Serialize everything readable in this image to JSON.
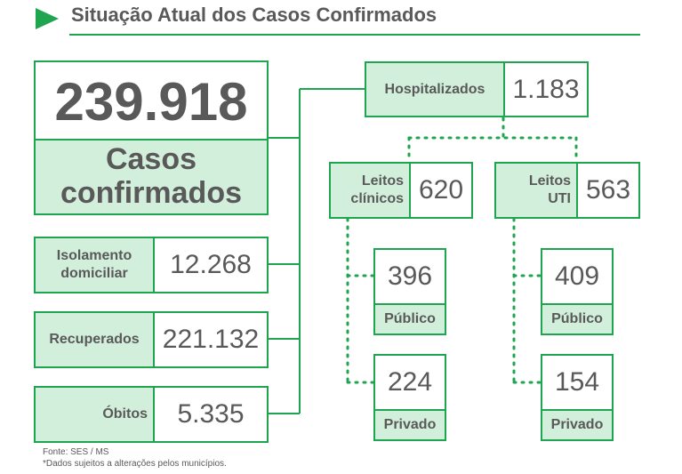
{
  "header": {
    "title": "Situação Atual dos Casos Confirmados",
    "accent_color": "#1fa44f",
    "icon": "play-triangle-icon"
  },
  "total": {
    "value": "239.918",
    "label_line1": "Casos",
    "label_line2": "confirmados"
  },
  "status": [
    {
      "label_line1": "Isolamento",
      "label_line2": "domiciliar",
      "value": "12.268"
    },
    {
      "label_line1": "Recuperados",
      "label_line2": "",
      "value": "221.132"
    },
    {
      "label_line1": "Óbitos",
      "label_line2": "",
      "value": "5.335"
    }
  ],
  "hospitalizados": {
    "label": "Hospitalizados",
    "value": "1.183"
  },
  "leitos_clinicos": {
    "label_line1": "Leitos",
    "label_line2": "clínicos",
    "value": "620",
    "publico": {
      "value": "396",
      "label": "Público"
    },
    "privado": {
      "value": "224",
      "label": "Privado"
    }
  },
  "leitos_uti": {
    "label_line1": "Leitos",
    "label_line2": "UTI",
    "value": "563",
    "publico": {
      "value": "409",
      "label": "Público"
    },
    "privado": {
      "value": "154",
      "label": "Privado"
    }
  },
  "footer": {
    "source": "Fonte: SES / MS",
    "note": "*Dados sujeitos a alterações pelos municípios."
  }
}
